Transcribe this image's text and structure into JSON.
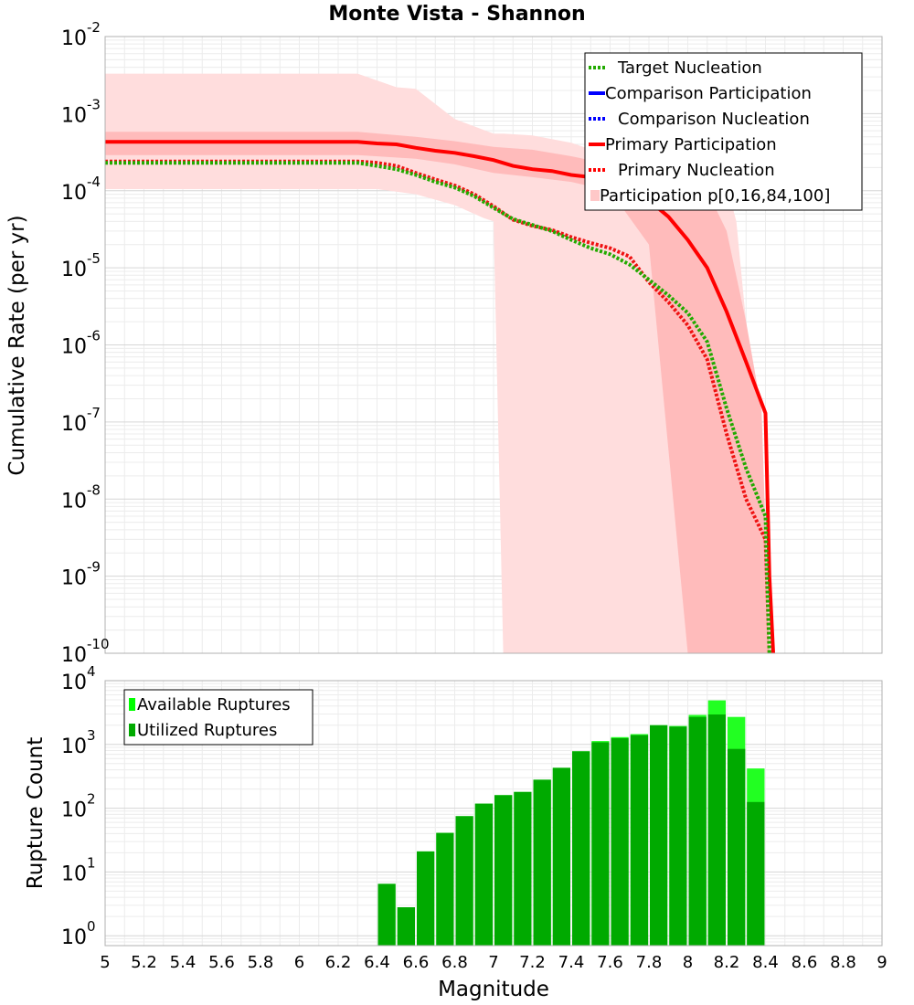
{
  "chart_data": {
    "title": "Monte Vista - Shannon",
    "xlabel": "Magnitude",
    "x_ticks": [
      5,
      5.2,
      5.4,
      5.6,
      5.8,
      6,
      6.2,
      6.4,
      6.6,
      6.8,
      7,
      7.2,
      7.4,
      7.6,
      7.8,
      8,
      8.2,
      8.4,
      8.6,
      8.8,
      9
    ],
    "x_tick_labels": [
      "5",
      "5.2",
      "5.4",
      "5.6",
      "5.8",
      "6",
      "6.2",
      "6.4",
      "6.6",
      "6.8",
      "7",
      "7.2",
      "7.4",
      "7.6",
      "7.8",
      "8",
      "8.2",
      "8.4",
      "8.6",
      "8.8",
      "9"
    ],
    "xlim": [
      5,
      9
    ],
    "panels": [
      {
        "type": "line",
        "ylabel": "Cumulative Rate (per yr)",
        "yscale": "log",
        "ylim": [
          1e-10,
          0.01
        ],
        "y_ticks": [
          {
            "base": "10",
            "exp": "-10"
          },
          {
            "base": "10",
            "exp": "-9"
          },
          {
            "base": "10",
            "exp": "-8"
          },
          {
            "base": "10",
            "exp": "-7"
          },
          {
            "base": "10",
            "exp": "-6"
          },
          {
            "base": "10",
            "exp": "-5"
          },
          {
            "base": "10",
            "exp": "-4"
          },
          {
            "base": "10",
            "exp": "-3"
          },
          {
            "base": "10",
            "exp": "-2"
          }
        ],
        "grid": true,
        "legend_position": "top-right",
        "legend": [
          {
            "label": "Target Nucleation",
            "color": "#22aa00",
            "style": "dotted"
          },
          {
            "label": "Comparison Participation",
            "color": "#0000ff",
            "style": "solid"
          },
          {
            "label": "Comparison Nucleation",
            "color": "#0000ff",
            "style": "dotted"
          },
          {
            "label": "Primary Participation",
            "color": "#ff0000",
            "style": "solid"
          },
          {
            "label": "Primary Nucleation",
            "color": "#ff0000",
            "style": "dotted"
          },
          {
            "label": "Participation p[0,16,84,100]",
            "color": "#ffc8c8",
            "style": "box"
          }
        ],
        "bands": [
          {
            "name": "p0-p100",
            "color": "#ffdddd",
            "upper": [
              [
                5,
                0.0033
              ],
              [
                6.3,
                0.0033
              ],
              [
                6.5,
                0.0022
              ],
              [
                6.6,
                0.0021
              ],
              [
                6.8,
                0.00085
              ],
              [
                7.0,
                0.00055
              ],
              [
                7.05,
                0.00055
              ],
              [
                7.2,
                0.00052
              ],
              [
                7.4,
                0.00042
              ],
              [
                7.6,
                0.00028
              ],
              [
                7.8,
                0.00022
              ],
              [
                8.0,
                0.00018
              ],
              [
                8.2,
                0.00012
              ],
              [
                8.25,
                4e-05
              ],
              [
                8.4,
                5e-09
              ],
              [
                8.42,
                1e-10
              ]
            ],
            "lower": [
              [
                5,
                0.000105
              ],
              [
                6.4,
                0.000105
              ],
              [
                6.6,
                9e-05
              ],
              [
                6.8,
                6.5e-05
              ],
              [
                6.95,
                4.4e-05
              ],
              [
                7.0,
                4e-05
              ],
              [
                7.05,
                1e-10
              ]
            ]
          },
          {
            "name": "p16-p84",
            "color": "#ffbbbb",
            "upper": [
              [
                5,
                0.00058
              ],
              [
                6.3,
                0.00058
              ],
              [
                6.6,
                0.0005
              ],
              [
                6.8,
                0.00044
              ],
              [
                7.0,
                0.00037
              ],
              [
                7.2,
                0.00034
              ],
              [
                7.4,
                0.00028
              ],
              [
                7.6,
                0.00022
              ],
              [
                7.8,
                0.00018
              ],
              [
                7.9,
                0.00013
              ],
              [
                8.0,
                0.00012
              ],
              [
                8.1,
                0.0001
              ],
              [
                8.2,
                3e-05
              ],
              [
                8.3,
                2e-06
              ],
              [
                8.38,
                1.4e-07
              ],
              [
                8.42,
                1e-10
              ]
            ],
            "lower": [
              [
                5,
                0.00029
              ],
              [
                6.3,
                0.00029
              ],
              [
                6.6,
                0.00026
              ],
              [
                6.8,
                0.00022
              ],
              [
                7.0,
                0.00017
              ],
              [
                7.2,
                0.00015
              ],
              [
                7.4,
                0.00013
              ],
              [
                7.6,
                0.0001
              ],
              [
                7.8,
                2e-05
              ],
              [
                8.0,
                1e-10
              ]
            ]
          }
        ],
        "series": [
          {
            "name": "Primary Participation",
            "color": "#ff0000",
            "style": "solid",
            "x": [
              5,
              5.2,
              5.4,
              5.6,
              5.8,
              6,
              6.2,
              6.3,
              6.4,
              6.5,
              6.6,
              6.7,
              6.8,
              6.9,
              7.0,
              7.1,
              7.2,
              7.3,
              7.4,
              7.5,
              7.6,
              7.7,
              7.8,
              7.9,
              8.0,
              8.1,
              8.2,
              8.3,
              8.4,
              8.42,
              8.44
            ],
            "y": [
              0.00043,
              0.00043,
              0.00043,
              0.00043,
              0.00043,
              0.00043,
              0.00043,
              0.00043,
              0.00041,
              0.0004,
              0.00036,
              0.00033,
              0.00031,
              0.00028,
              0.00025,
              0.00021,
              0.00019,
              0.00018,
              0.00016,
              0.00015,
              0.00013,
              0.000105,
              7.5e-05,
              4.6e-05,
              2.3e-05,
              1e-05,
              2.7e-06,
              6e-07,
              1.3e-07,
              1e-09,
              1e-10
            ]
          },
          {
            "name": "Primary Nucleation",
            "color": "#ee1111",
            "style": "dotted",
            "x": [
              5,
              5.2,
              5.4,
              5.6,
              5.8,
              6,
              6.2,
              6.3,
              6.4,
              6.5,
              6.6,
              6.7,
              6.8,
              6.9,
              7.0,
              7.1,
              7.2,
              7.3,
              7.4,
              7.5,
              7.6,
              7.7,
              7.8,
              7.9,
              8.0,
              8.1,
              8.2,
              8.3,
              8.4,
              8.42
            ],
            "y": [
              0.00024,
              0.00024,
              0.00024,
              0.00024,
              0.00024,
              0.00024,
              0.00024,
              0.00024,
              0.00023,
              0.00021,
              0.00017,
              0.00014,
              0.000117,
              9e-05,
              6.3e-05,
              4.2e-05,
              3.5e-05,
              3.1e-05,
              2.5e-05,
              2.1e-05,
              1.8e-05,
              1.4e-05,
              6.5e-06,
              3.6e-06,
              1.8e-06,
              6.5e-07,
              7e-08,
              1e-08,
              3e-09,
              1e-10
            ]
          },
          {
            "name": "Target Nucleation",
            "color": "#22aa00",
            "style": "dotted",
            "x": [
              5,
              5.2,
              5.4,
              5.6,
              5.8,
              6,
              6.2,
              6.3,
              6.4,
              6.5,
              6.6,
              6.7,
              6.8,
              6.9,
              7.0,
              7.1,
              7.2,
              7.3,
              7.4,
              7.5,
              7.6,
              7.7,
              7.8,
              7.9,
              8.0,
              8.1,
              8.2,
              8.3,
              8.4,
              8.42
            ],
            "y": [
              0.00023,
              0.00023,
              0.00023,
              0.00023,
              0.00023,
              0.00023,
              0.00023,
              0.00023,
              0.00021,
              0.00019,
              0.00016,
              0.00013,
              0.00011,
              8.5e-05,
              6e-05,
              4.3e-05,
              3.6e-05,
              3e-05,
              2.3e-05,
              1.8e-05,
              1.5e-05,
              1.1e-05,
              7e-06,
              4.4e-06,
              2.6e-06,
              1.1e-06,
              1.5e-07,
              2.5e-08,
              6e-09,
              1e-10
            ]
          }
        ]
      },
      {
        "type": "bar",
        "ylabel": "Rupture Count",
        "yscale": "log",
        "ylim": [
          0.7,
          10000
        ],
        "y_ticks": [
          {
            "base": "10",
            "exp": "0"
          },
          {
            "base": "10",
            "exp": "1"
          },
          {
            "base": "10",
            "exp": "2"
          },
          {
            "base": "10",
            "exp": "3"
          },
          {
            "base": "10",
            "exp": "4"
          }
        ],
        "grid": true,
        "legend_position": "top-left",
        "legend": [
          {
            "label": "Available Ruptures",
            "color": "#00ff00"
          },
          {
            "label": "Utilized Ruptures",
            "color": "#00aa00"
          }
        ],
        "bar_width": 0.1,
        "series": [
          {
            "name": "Available Ruptures",
            "color": "#22ff22",
            "x": [
              6.45,
              6.55,
              6.65,
              6.75,
              6.85,
              6.95,
              7.05,
              7.15,
              7.25,
              7.35,
              7.45,
              7.55,
              7.65,
              7.75,
              7.85,
              7.95,
              8.05,
              8.15,
              8.25,
              8.35
            ],
            "values": [
              6.5,
              2.8,
              21,
              41,
              75,
              118,
              160,
              180,
              280,
              430,
              780,
              1130,
              1300,
              1450,
              2000,
              1950,
              2900,
              4900,
              2700,
              420
            ]
          },
          {
            "name": "Utilized Ruptures",
            "color": "#00aa00",
            "x": [
              6.45,
              6.55,
              6.65,
              6.75,
              6.85,
              6.95,
              7.05,
              7.15,
              7.25,
              7.35,
              7.45,
              7.55,
              7.65,
              7.75,
              7.85,
              7.95,
              8.05,
              8.15,
              8.25,
              8.35
            ],
            "values": [
              6.5,
              2.8,
              21,
              41,
              75,
              118,
              160,
              180,
              280,
              430,
              780,
              1080,
              1250,
              1400,
              2000,
              1900,
              2700,
              2950,
              850,
              125
            ]
          }
        ]
      }
    ]
  }
}
